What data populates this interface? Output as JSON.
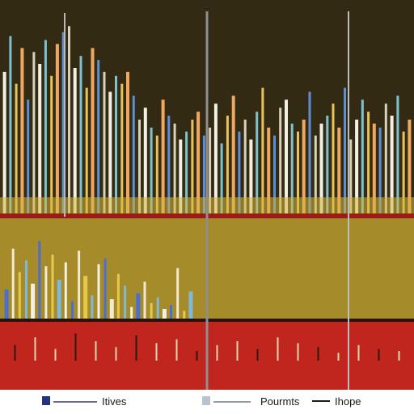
{
  "chart_data": {
    "type": "bar",
    "title": "",
    "xlabel": "",
    "ylabel": "",
    "grid": false,
    "legend_placement": "bottom",
    "colors": {
      "top_panel_bg": "#332a14",
      "middle_panel_bg": "#a58b2a",
      "bottom_panel_bg": "#c0261e",
      "divider": "#9a1c16",
      "legend_swatch": "#24337a",
      "bar_palette": [
        "#f2efe4",
        "#7fc2cf",
        "#e8c35a",
        "#f0a860",
        "#5c8fd6",
        "#d9d2b8"
      ]
    },
    "legend": [
      {
        "label": "Itives",
        "color": "#24337a"
      },
      {
        "label": "Pourmts",
        "color": "#b7c4cf"
      },
      {
        "label": "Ihope",
        "color": "#1a1a1a"
      }
    ],
    "panels": [
      {
        "name": "upper",
        "ylim": [
          0,
          100
        ],
        "series": [
          {
            "name": "",
            "values": [
              72,
              90,
              66,
              84,
              58,
              82,
              76,
              88,
              70,
              86,
              92,
              95,
              74,
              80,
              64,
              84,
              78,
              72,
              62,
              70,
              66,
              72,
              60,
              48,
              54,
              44,
              40,
              58,
              50,
              46,
              38,
              42,
              48,
              52,
              40,
              44,
              56,
              36,
              50,
              60,
              42,
              48,
              38,
              52,
              64,
              44,
              40,
              54,
              58,
              46,
              42,
              48,
              62,
              40,
              46,
              50,
              56,
              44,
              64,
              38,
              48,
              58,
              52,
              46,
              44,
              56,
              50,
              60,
              42,
              48
            ]
          }
        ]
      },
      {
        "name": "middle",
        "ylim": [
          0,
          100
        ],
        "series": [
          {
            "name": "",
            "values": [
              30,
              72,
              48,
              60,
              36,
              80,
              54,
              66,
              40,
              58,
              18,
              70,
              44,
              24,
              56,
              62,
              20,
              46,
              34,
              12,
              26,
              38,
              16,
              22,
              10,
              14,
              52,
              8,
              28
            ]
          }
        ]
      },
      {
        "name": "lower",
        "ylim": [
          0,
          100
        ],
        "series": [
          {
            "name": "",
            "values": [
              40,
              60,
              30,
              70,
              50,
              35,
              65,
              45,
              55,
              25,
              40,
              50,
              30,
              60,
              45,
              35,
              20,
              40,
              30,
              25
            ]
          }
        ]
      }
    ]
  }
}
